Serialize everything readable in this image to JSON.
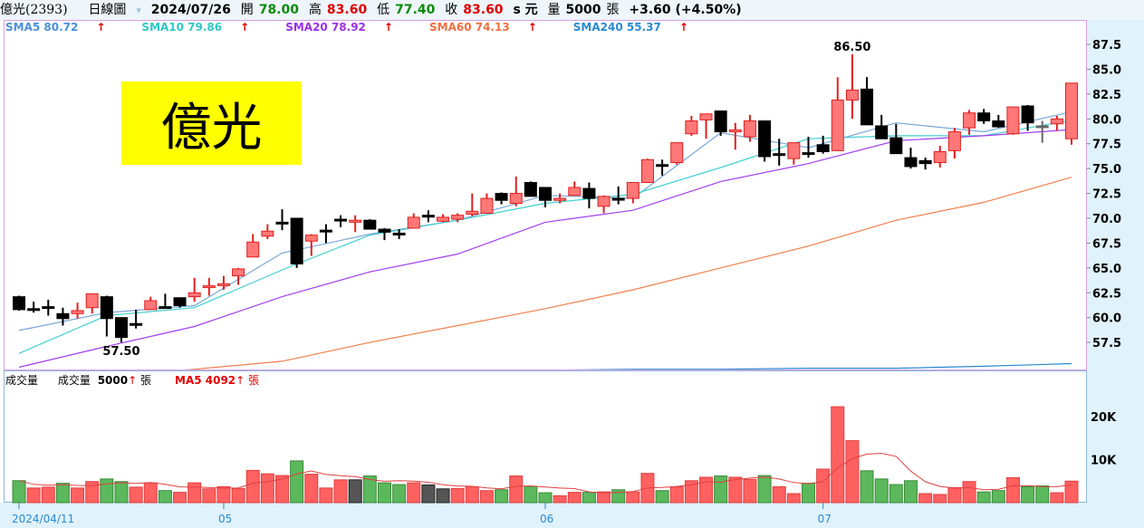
{
  "header": {
    "stock": "億光(2393)",
    "period": "日線圖",
    "date": "2024/07/26",
    "open_label": "開",
    "open": "78.00",
    "high_label": "高",
    "high": "83.60",
    "low_label": "低",
    "low": "77.40",
    "close_label": "收",
    "close": "83.60",
    "unit": "s 元",
    "vol_label": "量",
    "vol": "5000",
    "vol_unit": "張",
    "change": "+3.60 (+4.50%)"
  },
  "sma_legend": [
    {
      "label": "SMA5 80.72",
      "color": "#4a90d9"
    },
    {
      "label": "SMA10 79.86",
      "color": "#2ec8c8"
    },
    {
      "label": "SMA20 78.92",
      "color": "#9b30e8"
    },
    {
      "label": "SMA60 74.13",
      "color": "#f07040"
    },
    {
      "label": "SMA240 55.37",
      "color": "#2a8ad0"
    }
  ],
  "arrow": "🠕",
  "logo_text": "億光",
  "volume_header": {
    "title": "成交量",
    "vol_label": "成交量",
    "vol_value": "5000",
    "unit": "張",
    "ma_label": "MA5 4092"
  },
  "price_axis": [
    "87.5",
    "85.0",
    "82.5",
    "80.0",
    "77.5",
    "75.0",
    "72.5",
    "70.0",
    "67.5",
    "65.0",
    "62.5",
    "60.0",
    "57.5"
  ],
  "volume_axis": [
    "20K",
    "10K"
  ],
  "date_ticks": [
    {
      "label": "2024/04/11",
      "index": 0
    },
    {
      "label": "05",
      "index": 14
    },
    {
      "label": "06",
      "index": 36
    },
    {
      "label": "07",
      "index": 55
    }
  ],
  "annotations": [
    {
      "label": "86.50",
      "index": 57,
      "price": 86.5,
      "pos": "above"
    },
    {
      "label": "57.50",
      "index": 7,
      "price": 57.5,
      "pos": "below"
    }
  ],
  "colors": {
    "up": "#ff7777",
    "up_border": "#e02020",
    "down": "#000000",
    "vol_up": "#ff6060",
    "vol_down": "#5cb85c",
    "vol_flat": "#555555",
    "axis_bg": "#e0f2fb"
  },
  "chart_data": {
    "type": "candlestick",
    "ylim": [
      54.8,
      90
    ],
    "ohlc": [
      [
        62.1,
        62.2,
        60.7,
        60.8
      ],
      [
        60.9,
        61.6,
        60.5,
        60.9
      ],
      [
        61.1,
        61.8,
        60.2,
        61.0
      ],
      [
        60.4,
        61.0,
        59.2,
        59.9
      ],
      [
        60.4,
        61.5,
        59.9,
        60.7
      ],
      [
        61.0,
        62.4,
        60.4,
        62.4
      ],
      [
        62.1,
        62.2,
        58.1,
        59.9
      ],
      [
        60.0,
        60.0,
        57.5,
        58.0
      ],
      [
        59.4,
        60.8,
        58.9,
        59.4
      ],
      [
        60.8,
        62.1,
        60.8,
        61.7
      ],
      [
        61.1,
        62.4,
        61.1,
        61.1
      ],
      [
        62.0,
        62.0,
        61.0,
        61.2
      ],
      [
        62.1,
        64.0,
        61.6,
        62.5
      ],
      [
        63.1,
        64.0,
        62.2,
        63.2
      ],
      [
        63.3,
        64.2,
        62.8,
        63.4
      ],
      [
        64.2,
        65.0,
        63.3,
        64.9
      ],
      [
        66.1,
        68.4,
        66.1,
        67.6
      ],
      [
        68.2,
        69.4,
        67.9,
        68.7
      ],
      [
        69.6,
        70.9,
        68.8,
        69.5
      ],
      [
        70.0,
        70.0,
        65.0,
        65.4
      ],
      [
        67.7,
        68.4,
        66.2,
        68.3
      ],
      [
        68.8,
        69.4,
        67.5,
        68.8
      ],
      [
        69.9,
        70.3,
        69.1,
        69.9
      ],
      [
        69.6,
        70.3,
        68.6,
        69.8
      ],
      [
        69.8,
        69.9,
        68.9,
        68.9
      ],
      [
        68.9,
        69.0,
        67.8,
        68.6
      ],
      [
        68.5,
        68.9,
        67.9,
        68.5
      ],
      [
        69.0,
        70.5,
        69.0,
        70.1
      ],
      [
        70.3,
        70.8,
        69.6,
        70.3
      ],
      [
        69.7,
        70.4,
        69.6,
        70.1
      ],
      [
        69.9,
        70.5,
        69.6,
        70.3
      ],
      [
        70.4,
        72.5,
        70.2,
        70.7
      ],
      [
        70.5,
        72.5,
        70.5,
        72.0
      ],
      [
        72.5,
        72.6,
        71.4,
        71.8
      ],
      [
        71.5,
        74.2,
        71.2,
        72.5
      ],
      [
        73.6,
        73.7,
        72.2,
        72.2
      ],
      [
        73.1,
        73.1,
        71.1,
        71.8
      ],
      [
        71.8,
        72.5,
        71.5,
        72.0
      ],
      [
        72.3,
        73.7,
        72.3,
        73.1
      ],
      [
        73.0,
        73.6,
        71.0,
        72.0
      ],
      [
        71.2,
        72.3,
        70.5,
        72.2
      ],
      [
        72.0,
        73.2,
        71.4,
        72.0
      ],
      [
        72.0,
        73.6,
        71.5,
        73.6
      ],
      [
        73.6,
        76.0,
        73.6,
        75.9
      ],
      [
        75.4,
        75.9,
        74.3,
        75.4
      ],
      [
        75.6,
        77.6,
        75.4,
        77.6
      ],
      [
        78.5,
        80.3,
        78.3,
        79.8
      ],
      [
        79.9,
        80.5,
        78.0,
        80.5
      ],
      [
        80.8,
        80.8,
        78.3,
        78.7
      ],
      [
        78.7,
        79.6,
        76.9,
        78.9
      ],
      [
        78.2,
        80.4,
        77.7,
        79.8
      ],
      [
        79.8,
        79.8,
        75.7,
        76.2
      ],
      [
        76.5,
        78.0,
        75.3,
        76.5
      ],
      [
        76.0,
        77.6,
        75.4,
        77.6
      ],
      [
        76.6,
        78.2,
        76.1,
        76.6
      ],
      [
        77.4,
        78.3,
        76.5,
        76.7
      ],
      [
        76.8,
        84.2,
        76.8,
        81.9
      ],
      [
        81.9,
        86.5,
        80.0,
        82.9
      ],
      [
        83.0,
        84.2,
        79.4,
        79.4
      ],
      [
        79.3,
        80.4,
        78.0,
        78.0
      ],
      [
        78.1,
        79.5,
        76.5,
        76.5
      ],
      [
        76.1,
        77.1,
        75.0,
        75.2
      ],
      [
        75.8,
        76.1,
        74.9,
        75.5
      ],
      [
        75.6,
        77.3,
        75.1,
        76.7
      ],
      [
        76.8,
        79.1,
        76.0,
        78.7
      ],
      [
        79.1,
        80.9,
        78.4,
        80.6
      ],
      [
        80.6,
        81.0,
        79.5,
        79.8
      ],
      [
        79.8,
        80.4,
        79.1,
        79.2
      ],
      [
        78.5,
        81.2,
        78.4,
        81.2
      ],
      [
        81.3,
        81.4,
        78.8,
        79.6
      ],
      [
        79.3,
        79.8,
        77.6,
        79.3
      ],
      [
        79.5,
        80.3,
        78.8,
        80.0
      ],
      [
        78.0,
        83.6,
        77.4,
        83.6
      ]
    ],
    "sma_samples_index": [
      0,
      6,
      12,
      18,
      24,
      30,
      36,
      42,
      48,
      54,
      60,
      66,
      72
    ],
    "sma": {
      "SMA5": [
        58.7,
        60.5,
        61.2,
        66.5,
        68.4,
        69.8,
        72.3,
        72.0,
        78.6,
        77.1,
        79.6,
        78.7,
        80.72
      ],
      "SMA10": [
        56.4,
        60.2,
        61.0,
        64.8,
        68.3,
        69.8,
        71.5,
        72.4,
        75.1,
        78.0,
        78.3,
        78.3,
        79.86
      ],
      "SMA20": [
        55.0,
        57.1,
        59.1,
        62.1,
        64.6,
        66.4,
        69.6,
        70.8,
        73.7,
        75.5,
        77.8,
        78.3,
        78.92
      ],
      "SMA60": [
        53.3,
        54.0,
        54.8,
        55.6,
        57.5,
        59.2,
        60.9,
        62.8,
        65.0,
        67.2,
        69.8,
        71.6,
        74.13
      ],
      "SMA240": [
        54.3,
        54.4,
        54.5,
        54.6,
        54.6,
        54.7,
        54.7,
        54.8,
        54.8,
        54.9,
        54.9,
        55.1,
        55.37
      ]
    },
    "volume_k": [
      5.1,
      3.4,
      3.6,
      4.5,
      3.4,
      4.9,
      5.5,
      4.9,
      3.6,
      4.6,
      2.8,
      2.4,
      4.6,
      3.2,
      3.7,
      3.3,
      7.5,
      6.7,
      6.3,
      9.7,
      6.6,
      3.4,
      5.3,
      5.3,
      6.2,
      4.6,
      4.2,
      4.6,
      4.1,
      3.2,
      3.3,
      3.7,
      2.8,
      3.0,
      6.2,
      3.8,
      2.3,
      1.6,
      2.4,
      2.4,
      2.5,
      3.0,
      2.5,
      6.8,
      2.8,
      3.7,
      5.1,
      5.9,
      6.2,
      5.9,
      5.4,
      6.3,
      3.7,
      2.1,
      4.5,
      7.8,
      22.3,
      14.4,
      7.4,
      5.5,
      4.2,
      5.1,
      2.1,
      1.9,
      3.5,
      4.9,
      2.5,
      2.8,
      5.8,
      3.7,
      3.9,
      2.3,
      5.0
    ],
    "volume_dir": "grrgrrggrrgrrrrrrrrgrrrfgggrffrrrgrggrrgrgrrgrrrgrrgrrgrrrgggg rrrrggrggrr"
  }
}
